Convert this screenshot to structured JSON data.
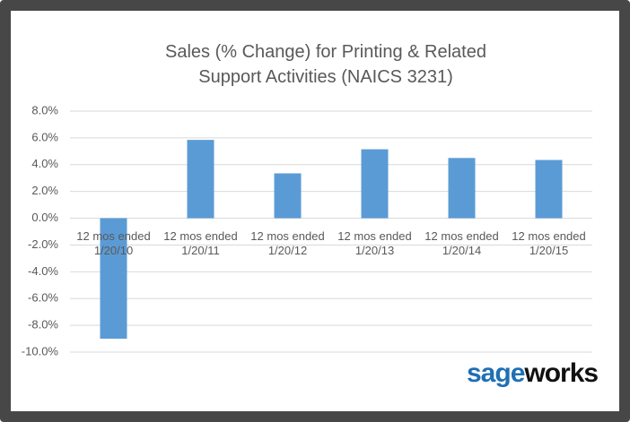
{
  "chart_data": {
    "type": "bar",
    "title": "Sales (% Change) for Printing & Related Support Activities (NAICS 3231)",
    "categories": [
      "12 mos ended 1/20/10",
      "12 mos ended 1/20/11",
      "12 mos ended 1/20/12",
      "12 mos ended 1/20/13",
      "12 mos ended 1/20/14",
      "12 mos ended 1/20/15"
    ],
    "values": [
      -9.0,
      5.85,
      3.35,
      5.15,
      4.5,
      4.35
    ],
    "color": "#5b9bd5",
    "ylim": [
      -10,
      8
    ],
    "yticks": [
      {
        "value": -10,
        "label": "-10.0%"
      },
      {
        "value": -8,
        "label": "-8.0%"
      },
      {
        "value": -6,
        "label": "-6.0%"
      },
      {
        "value": -4,
        "label": "-4.0%"
      },
      {
        "value": -2,
        "label": "-2.0%"
      },
      {
        "value": 0,
        "label": "0.0%"
      },
      {
        "value": 2,
        "label": "2.0%"
      },
      {
        "value": 4,
        "label": "4.0%"
      },
      {
        "value": 6,
        "label": "6.0%"
      },
      {
        "value": 8,
        "label": "8.0%"
      }
    ],
    "grid": true
  },
  "logo": {
    "part1": "sage",
    "part2": "works"
  }
}
